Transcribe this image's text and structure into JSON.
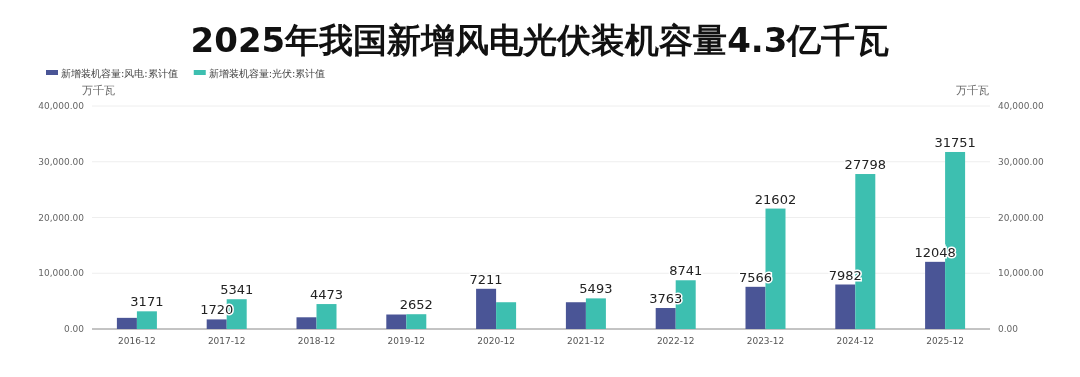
{
  "chart_data": {
    "type": "bar",
    "title": "2025年我国新增风电光伏装机容量4.3亿千瓦",
    "categories": [
      "2016-12",
      "2017-12",
      "2018-12",
      "2019-12",
      "2020-12",
      "2021-12",
      "2022-12",
      "2023-12",
      "2024-12",
      "2025-12"
    ],
    "series": [
      {
        "name": "新增装机容量:风电:累计值",
        "color": "#4a5596",
        "values": [
          2000,
          1720,
          2100,
          2600,
          7211,
          4800,
          3763,
          7566,
          7982,
          12048
        ],
        "value_labels": [
          null,
          "1720",
          null,
          null,
          "7211",
          null,
          "3763",
          "7566",
          "7982",
          "12048"
        ]
      },
      {
        "name": "新增装机容量:光伏:累计值",
        "color": "#3dbfb0",
        "values": [
          3171,
          5341,
          4473,
          2652,
          4800,
          5493,
          8741,
          21602,
          27798,
          31751
        ],
        "value_labels": [
          "3171",
          "5341",
          "4473",
          "2652",
          null,
          "5493",
          "8741",
          "21602",
          "27798",
          "31751"
        ]
      }
    ],
    "ylabel": "万千瓦",
    "y2label": "万千瓦",
    "ylim": [
      0,
      40000
    ],
    "yticks": [
      {
        "value": 0,
        "label": "0.00"
      },
      {
        "value": 10000,
        "label": "10,000.00"
      },
      {
        "value": 20000,
        "label": "20,000.00"
      },
      {
        "value": 30000,
        "label": "30,000.00"
      },
      {
        "value": 40000,
        "label": "40,000.00"
      }
    ],
    "y2lim": [
      0,
      40000
    ],
    "y2ticks": [
      {
        "value": 0,
        "label": "0.00"
      },
      {
        "value": 10000,
        "label": "10,000.00"
      },
      {
        "value": 20000,
        "label": "20,000.00"
      },
      {
        "value": 30000,
        "label": "30,000.00"
      },
      {
        "value": 40000,
        "label": "40,000.00"
      }
    ],
    "grid": "y",
    "legend": "top left"
  }
}
